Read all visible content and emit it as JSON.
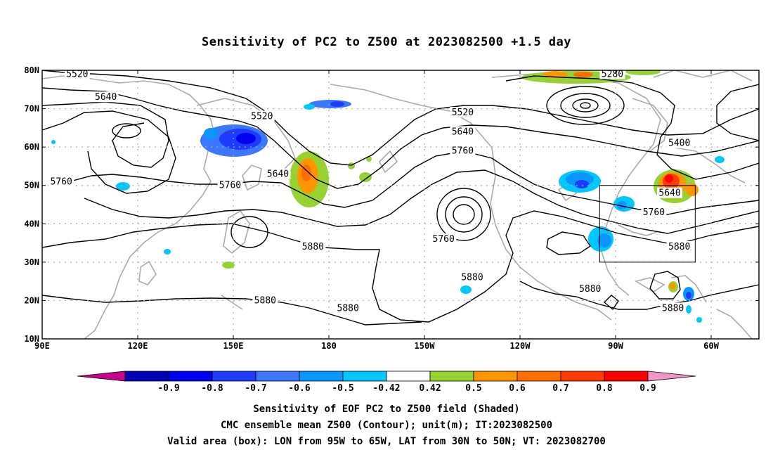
{
  "title": "Sensitivity of PC2 to Z500 at 2023082500 +1.5 day",
  "captions": [
    "Sensitivity of EOF PC2 to Z500 field (Shaded)",
    "CMC ensemble mean Z500 (Contour); unit(m); IT:2023082500",
    "Valid area (box): LON from 95W to 65W, LAT from 30N to 50N; VT: 2023082700"
  ],
  "map": {
    "lon_range": [
      90,
      315
    ],
    "lat_range": [
      10,
      80
    ],
    "lat_ticks": [
      {
        "lat": 80,
        "label": "80N"
      },
      {
        "lat": 70,
        "label": "70N"
      },
      {
        "lat": 60,
        "label": "60N"
      },
      {
        "lat": 50,
        "label": "50N"
      },
      {
        "lat": 40,
        "label": "40N"
      },
      {
        "lat": 30,
        "label": "30N"
      },
      {
        "lat": 20,
        "label": "20N"
      },
      {
        "lat": 10,
        "label": "10N"
      }
    ],
    "lon_ticks": [
      {
        "lon": 90,
        "label": "90E"
      },
      {
        "lon": 120,
        "label": "120E"
      },
      {
        "lon": 150,
        "label": "150E"
      },
      {
        "lon": 180,
        "label": "180"
      },
      {
        "lon": 210,
        "label": "150W"
      },
      {
        "lon": 240,
        "label": "120W"
      },
      {
        "lon": 270,
        "label": "90W"
      },
      {
        "lon": 300,
        "label": "60W"
      }
    ],
    "valid_box": {
      "lon": [
        265,
        295
      ],
      "lat": [
        30,
        50
      ]
    },
    "grid": true
  },
  "contour_labels": [
    {
      "text": "5520",
      "lon": 101,
      "lat": 79
    },
    {
      "text": "5640",
      "lon": 110,
      "lat": 73
    },
    {
      "text": "5520",
      "lon": 159,
      "lat": 68
    },
    {
      "text": "5520",
      "lon": 222,
      "lat": 69
    },
    {
      "text": "5640",
      "lon": 222,
      "lat": 64
    },
    {
      "text": "5760",
      "lon": 222,
      "lat": 59
    },
    {
      "text": "5280",
      "lon": 269,
      "lat": 79
    },
    {
      "text": "5400",
      "lon": 290,
      "lat": 61
    },
    {
      "text": "5760",
      "lon": 96,
      "lat": 51
    },
    {
      "text": "5640",
      "lon": 164,
      "lat": 53
    },
    {
      "text": "5760",
      "lon": 149,
      "lat": 50
    },
    {
      "text": "5640",
      "lon": 287,
      "lat": 48
    },
    {
      "text": "5760",
      "lon": 282,
      "lat": 43
    },
    {
      "text": "5760",
      "lon": 216,
      "lat": 36
    },
    {
      "text": "5880",
      "lon": 175,
      "lat": 34
    },
    {
      "text": "5880",
      "lon": 290,
      "lat": 34
    },
    {
      "text": "5880",
      "lon": 225,
      "lat": 26
    },
    {
      "text": "5880",
      "lon": 262,
      "lat": 23
    },
    {
      "text": "5880",
      "lon": 160,
      "lat": 20
    },
    {
      "text": "5880",
      "lon": 186,
      "lat": 18
    },
    {
      "text": "5880",
      "lon": 288,
      "lat": 18
    }
  ],
  "colorbar": {
    "colors": [
      "#c8008c",
      "#0000b4",
      "#0000f0",
      "#1e3cff",
      "#3c78ff",
      "#0a96ff",
      "#00c8ff",
      "#ffffff",
      "#96d232",
      "#ff9600",
      "#ff6e00",
      "#ff3c00",
      "#ff0000",
      "#f096c8"
    ],
    "labels": [
      "-0.9",
      "-0.8",
      "-0.7",
      "-0.6",
      "-0.5",
      "-0.42",
      "0.42",
      "0.5",
      "0.6",
      "0.7",
      "0.8",
      "0.9"
    ]
  }
}
